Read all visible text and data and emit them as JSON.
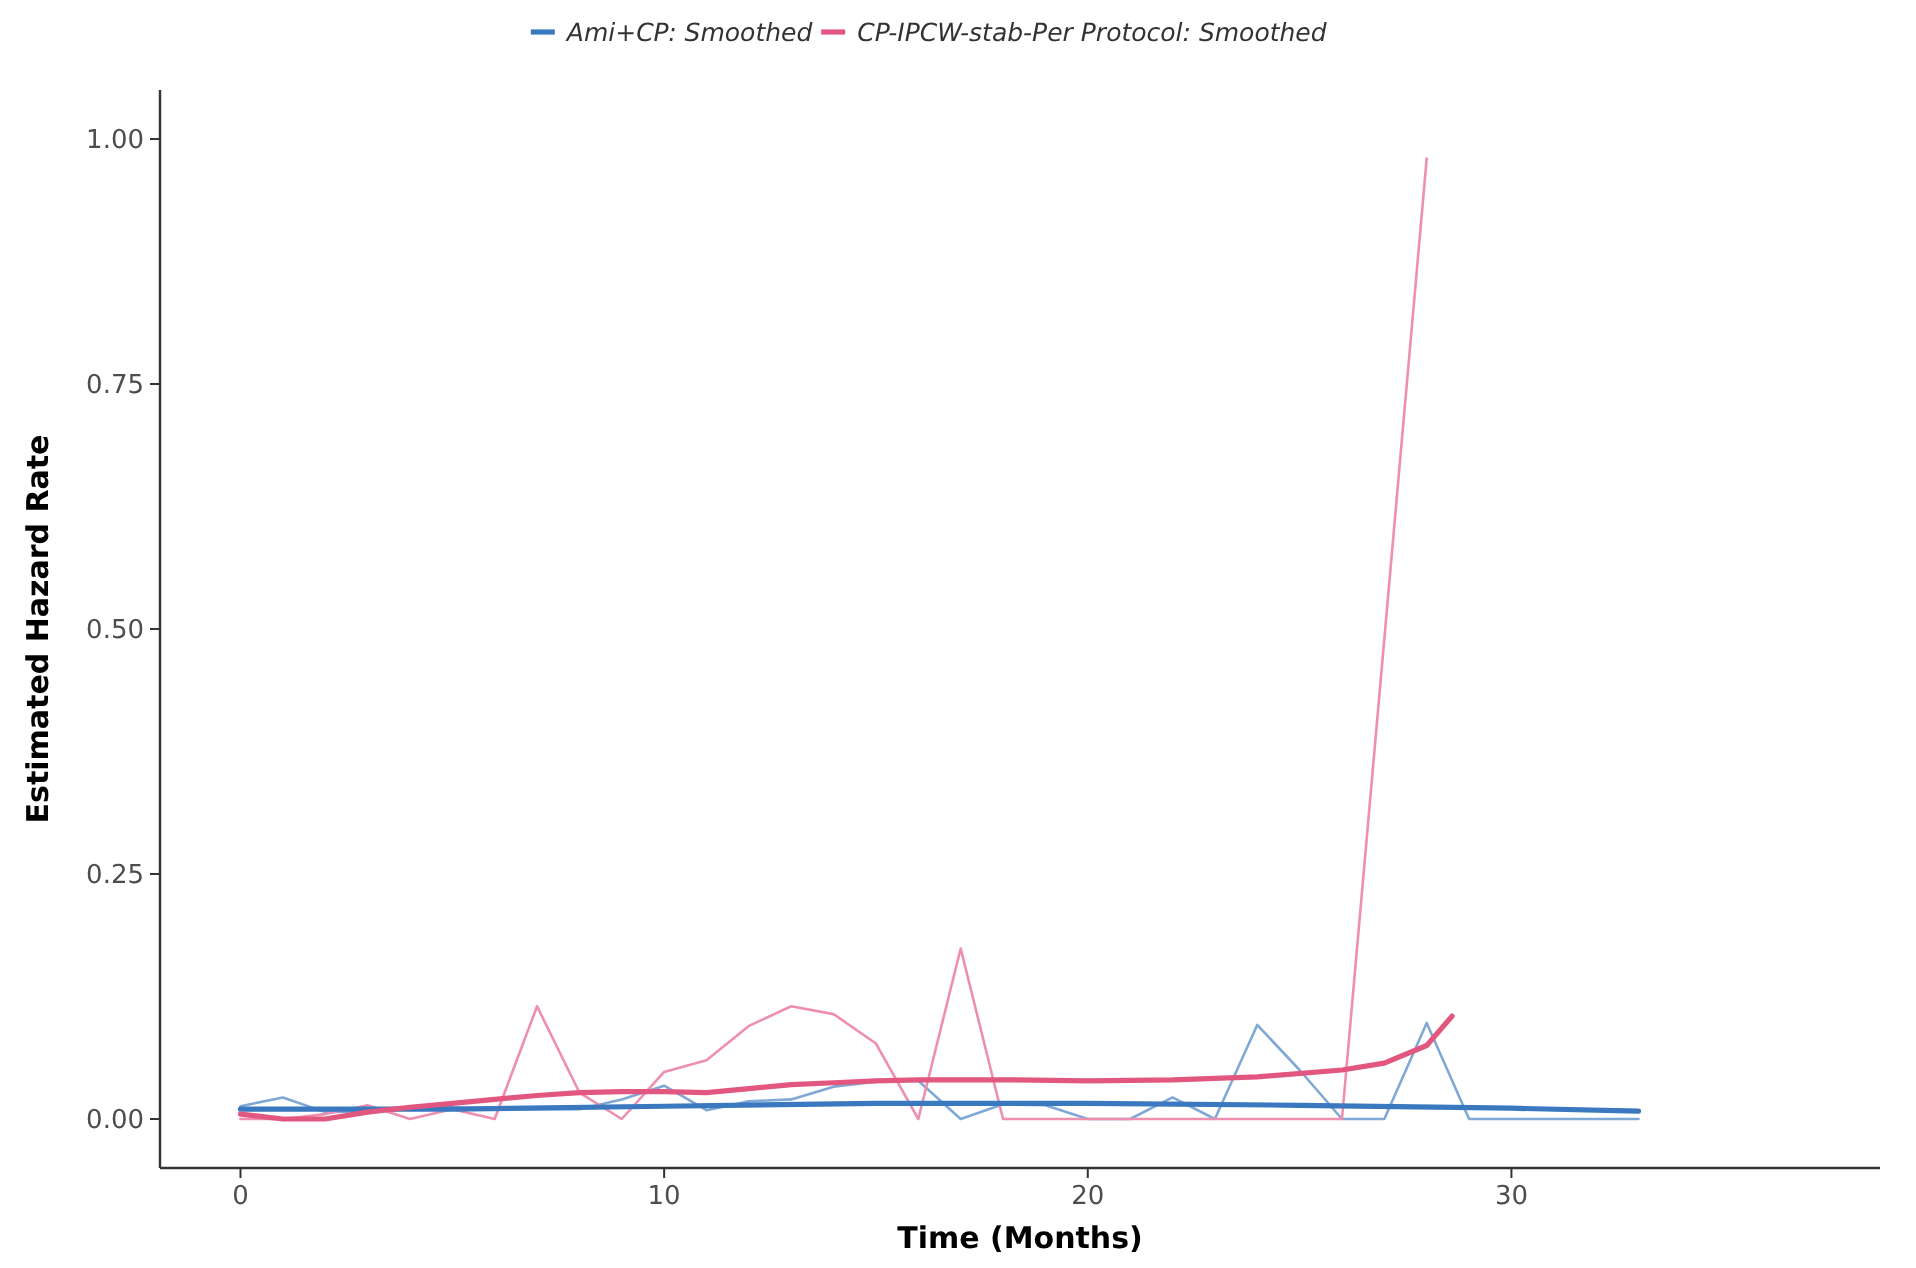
{
  "chart_data": {
    "type": "line",
    "xlabel": "Time (Months)",
    "ylabel": "Estimated Hazard Rate",
    "xlim": [
      -1.9,
      38.7
    ],
    "ylim": [
      -0.05,
      1.05
    ],
    "xticks": [
      0,
      10,
      20,
      30
    ],
    "yticks": [
      {
        "value": 0,
        "label": "0.00"
      },
      {
        "value": 0.25,
        "label": "0.25"
      },
      {
        "value": 0.5,
        "label": "0.50"
      },
      {
        "value": 0.75,
        "label": "0.75"
      },
      {
        "value": 1,
        "label": "1.00"
      }
    ],
    "grid": false,
    "legend": "top",
    "marker": "none",
    "line_style": "solid",
    "series": [
      {
        "color": "#7fa9d4",
        "x": [
          0,
          1,
          2,
          3,
          4,
          5,
          6,
          7,
          8,
          9,
          10,
          11,
          12,
          13,
          14,
          15,
          16,
          17,
          18,
          19,
          20,
          21,
          22,
          23,
          24,
          25,
          26,
          27,
          28,
          29,
          30,
          31,
          32,
          33
        ],
        "values": [
          0.013,
          0.022,
          0.007,
          0.008,
          0.012,
          0.012,
          0.01,
          0.01,
          0.01,
          0.02,
          0.034,
          0.009,
          0.018,
          0.02,
          0.033,
          0.038,
          0.039,
          0,
          0.015,
          0.014,
          0,
          0,
          0.022,
          0,
          0.096,
          0.05,
          0,
          0,
          0.098,
          0,
          0,
          0,
          0,
          0
        ]
      },
      {
        "color": "#ee8fb0",
        "x": [
          0,
          1,
          2,
          3,
          4,
          5,
          6,
          7,
          8,
          9,
          10,
          11,
          12,
          13,
          14,
          15,
          16,
          17,
          18,
          19,
          20,
          21,
          22,
          23,
          24,
          25,
          26,
          27,
          28
        ],
        "values": [
          0,
          0,
          0.005,
          0.014,
          0,
          0.01,
          0,
          0.115,
          0.027,
          0,
          0.048,
          0.06,
          0.095,
          0.115,
          0.107,
          0.077,
          0,
          0.174,
          0,
          0,
          0,
          0,
          0,
          0,
          0,
          0,
          0,
          0.49,
          0.98
        ]
      },
      {
        "name": "Ami+CP: Smoothed",
        "color": "#3a78bf",
        "x": [
          0,
          5,
          10,
          15,
          20,
          25,
          30,
          33
        ],
        "values": [
          0.01,
          0.01,
          0.013,
          0.016,
          0.016,
          0.014,
          0.011,
          0.008
        ]
      },
      {
        "name": "CP-IPCW-stab-Per Protocol: Smoothed",
        "color": "#e2577f",
        "x": [
          0,
          1,
          2,
          3,
          4,
          5,
          6,
          7,
          8,
          9,
          10,
          11,
          12,
          13,
          14,
          15,
          16,
          18,
          20,
          22,
          24,
          26,
          27,
          28,
          28.6
        ],
        "values": [
          0.005,
          0,
          0,
          0.007,
          0.012,
          0.016,
          0.02,
          0.024,
          0.027,
          0.028,
          0.028,
          0.027,
          0.031,
          0.035,
          0.037,
          0.039,
          0.04,
          0.04,
          0.039,
          0.04,
          0.043,
          0.05,
          0.057,
          0.075,
          0.105
        ]
      }
    ]
  }
}
